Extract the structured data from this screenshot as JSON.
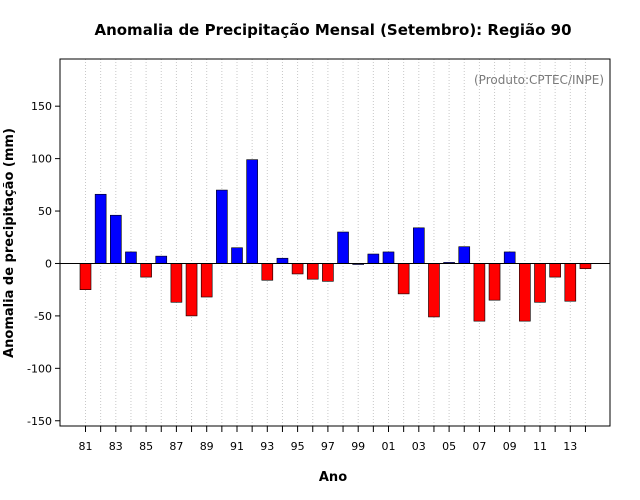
{
  "chart_data": {
    "type": "bar",
    "title": "Anomalia de Precipitação Mensal (Setembro): Região 90",
    "xlabel": "Ano",
    "ylabel": "Anomalia de precipitação (mm)",
    "credit": "(Produto:CPTEC/INPE)",
    "ylim": [
      -155,
      195
    ],
    "yticks": [
      -150,
      -100,
      -50,
      0,
      50,
      100,
      150
    ],
    "x_tick_labels": [
      "81",
      "83",
      "85",
      "87",
      "89",
      "91",
      "93",
      "95",
      "97",
      "99",
      "01",
      "03",
      "05",
      "07",
      "09",
      "11",
      "13"
    ],
    "categories": [
      "81",
      "82",
      "83",
      "84",
      "85",
      "86",
      "87",
      "88",
      "89",
      "90",
      "91",
      "92",
      "93",
      "94",
      "95",
      "96",
      "97",
      "98",
      "99",
      "00",
      "01",
      "02",
      "03",
      "04",
      "05",
      "06",
      "07",
      "08",
      "09",
      "10",
      "11",
      "12",
      "13",
      "14"
    ],
    "values": [
      -25,
      66,
      46,
      11,
      -13,
      7,
      -37,
      -50,
      -32,
      70,
      15,
      99,
      -16,
      5,
      -10,
      -15,
      -17,
      30,
      0,
      9,
      11,
      -29,
      34,
      -51,
      1,
      16,
      -55,
      -35,
      11,
      -55,
      -37,
      -13,
      -36,
      -5
    ],
    "positive_color": "#0000ff",
    "negative_color": "#ff0000",
    "grid": "vertical dotted",
    "zero_line": true
  }
}
